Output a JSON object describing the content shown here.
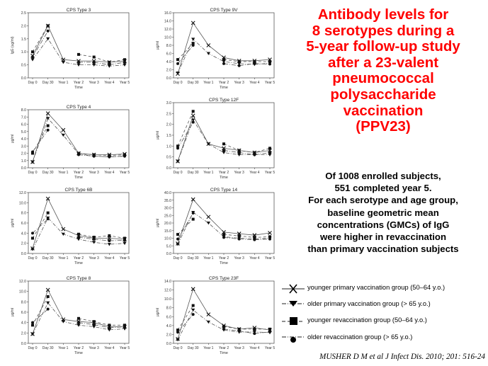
{
  "slide": {
    "title_lines": [
      "Antibody levels for",
      "8 serotypes during a",
      "5-year follow-up study",
      "after a 23-valent",
      "pneumococcal",
      "polysaccharide",
      "vaccination",
      "(PPV23)"
    ],
    "summary_lines": [
      "Of 1008 enrolled subjects,",
      "551 completed year 5.",
      "For each serotype and age group,",
      "baseline geometric mean",
      "concentrations (GMCs) of IgG",
      "were higher in revaccination",
      "than primary vaccination subjects"
    ],
    "legend": [
      {
        "label": "younger primary vaccination group (50–64 y.o.)",
        "marker": "x",
        "line": "solid"
      },
      {
        "label": "older primary vaccination group (> 65 y.o.)",
        "marker": "triangle-down",
        "line": "dash-dot"
      },
      {
        "label": "younger revaccination group (50–64 y.o.)",
        "marker": "square",
        "line": "dash"
      },
      {
        "label": "older revaccination group (> 65 y.o.)",
        "marker": "circle",
        "line": "dash-dot"
      }
    ],
    "citation": "MUSHER D M et al J Infect Dis. 2010; 201: 516-24",
    "colors": {
      "title": "#ff0000",
      "lines": "#555555",
      "axes": "#444444"
    }
  },
  "chart_data": [
    {
      "type": "line",
      "title": "CPS Type 3",
      "ylabel": "IgG (ug/ml)",
      "xlabel": "Time",
      "categories": [
        "Day 0",
        "Day 30",
        "Year 1",
        "Year 2",
        "Year 3",
        "Year 4",
        "Year 5"
      ],
      "ylim": [
        0,
        2.5
      ],
      "yticks": [
        "0.0",
        "0.5",
        "1.0",
        "1.5",
        "2.0",
        "2.5"
      ],
      "series": [
        {
          "values": [
            0.85,
            2.0,
            0.7,
            0.65,
            0.65,
            0.6,
            0.65
          ]
        },
        {
          "values": [
            0.7,
            1.5,
            0.6,
            0.5,
            0.5,
            0.45,
            0.5
          ]
        },
        {
          "values": [
            1.0,
            2.0,
            null,
            0.9,
            0.8,
            0.6,
            0.7
          ]
        },
        {
          "values": [
            0.8,
            1.8,
            null,
            0.6,
            0.6,
            0.5,
            0.6
          ]
        }
      ]
    },
    {
      "type": "line",
      "title": "CPS Type 9V",
      "ylabel": "μg/ml",
      "xlabel": "Time",
      "categories": [
        "Day 0",
        "Day 30",
        "Year 1",
        "Year 2",
        "Year 3",
        "Year 4",
        "Year 5"
      ],
      "ylim": [
        0,
        16
      ],
      "yticks": [
        "0.0",
        "2.0",
        "4.0",
        "6.0",
        "8.0",
        "10.0",
        "12.0",
        "14.0",
        "16.0"
      ],
      "series": [
        {
          "values": [
            1.0,
            13.5,
            8.0,
            5.0,
            4.2,
            4.2,
            4.5
          ]
        },
        {
          "values": [
            1.2,
            9.5,
            6.0,
            4.0,
            3.5,
            3.3,
            3.6
          ]
        },
        {
          "values": [
            4.5,
            8.5,
            null,
            4.5,
            4.0,
            4.0,
            4.0
          ]
        },
        {
          "values": [
            3.5,
            8.0,
            null,
            3.5,
            3.0,
            3.5,
            3.4
          ]
        }
      ]
    },
    {
      "type": "line",
      "title": "CPS Type 4",
      "ylabel": "μg/ml",
      "xlabel": "Time",
      "categories": [
        "Day 0",
        "Day 30",
        "Year 1",
        "Year 2",
        "Year 3",
        "Year 4",
        "Year 5"
      ],
      "ylim": [
        0,
        8
      ],
      "yticks": [
        "0.0",
        "1.0",
        "2.0",
        "3.0",
        "4.0",
        "5.0",
        "6.0",
        "7.0",
        "8.0"
      ],
      "series": [
        {
          "values": [
            0.8,
            7.5,
            5.2,
            2.0,
            1.8,
            1.8,
            1.9
          ]
        },
        {
          "values": [
            0.8,
            6.8,
            4.5,
            1.9,
            1.6,
            1.5,
            1.6
          ]
        },
        {
          "values": [
            2.0,
            5.8,
            null,
            2.0,
            1.8,
            1.7,
            1.8
          ]
        },
        {
          "values": [
            2.2,
            5.2,
            null,
            1.8,
            1.6,
            1.5,
            1.6
          ]
        }
      ]
    },
    {
      "type": "line",
      "title": "CPS Type 12F",
      "ylabel": "μg/ml",
      "xlabel": "Time",
      "categories": [
        "Day 0",
        "Day 30",
        "Year 1",
        "Year 2",
        "Year 3",
        "Year 4",
        "Year 5"
      ],
      "ylim": [
        0,
        3
      ],
      "yticks": [
        "0.0",
        "0.5",
        "1.0",
        "1.5",
        "2.0",
        "2.5",
        "3.0"
      ],
      "series": [
        {
          "values": [
            0.3,
            2.4,
            1.1,
            0.9,
            0.8,
            0.7,
            0.8
          ]
        },
        {
          "values": [
            0.3,
            2.2,
            1.1,
            0.7,
            0.6,
            0.6,
            0.6
          ]
        },
        {
          "values": [
            1.0,
            2.6,
            null,
            1.1,
            0.8,
            0.7,
            0.9
          ]
        },
        {
          "values": [
            0.9,
            2.1,
            null,
            0.8,
            0.7,
            0.6,
            0.7
          ]
        }
      ]
    },
    {
      "type": "line",
      "title": "CPS Type 6B",
      "ylabel": "μg/ml",
      "xlabel": "Time",
      "categories": [
        "Day 0",
        "Day 30",
        "Year 1",
        "Year 2",
        "Year 3",
        "Year 4",
        "Year 5"
      ],
      "ylim": [
        0,
        12
      ],
      "yticks": [
        "0.0",
        "2.0",
        "4.0",
        "6.0",
        "8.0",
        "10.0",
        "12.0"
      ],
      "series": [
        {
          "values": [
            1.0,
            10.8,
            4.8,
            3.5,
            3.0,
            3.0,
            2.8
          ]
        },
        {
          "values": [
            0.8,
            7.0,
            3.8,
            2.8,
            2.2,
            1.8,
            2.0
          ]
        },
        {
          "values": [
            3.0,
            8.0,
            null,
            3.8,
            3.2,
            3.5,
            3.0
          ]
        },
        {
          "values": [
            4.0,
            6.8,
            null,
            3.2,
            2.8,
            2.5,
            2.6
          ]
        }
      ]
    },
    {
      "type": "line",
      "title": "CPS Type 14",
      "ylabel": "μg/ml",
      "xlabel": "Time",
      "categories": [
        "Day 0",
        "Day 30",
        "Year 1",
        "Year 2",
        "Year 3",
        "Year 4",
        "Year 5"
      ],
      "ylim": [
        0,
        40
      ],
      "yticks": [
        "0.0",
        "5.0",
        "10.0",
        "15.0",
        "20.0",
        "25.0",
        "30.0",
        "35.0",
        "40.0"
      ],
      "series": [
        {
          "values": [
            6.5,
            35.5,
            24.0,
            14.0,
            13.0,
            12.0,
            13.5
          ]
        },
        {
          "values": [
            6.0,
            27.0,
            20.0,
            11.0,
            10.0,
            9.5,
            10.0
          ]
        },
        {
          "values": [
            12.5,
            22.5,
            null,
            12.5,
            11.5,
            10.5,
            11.0
          ]
        },
        {
          "values": [
            9.5,
            26.5,
            null,
            10.5,
            9.5,
            9.0,
            9.5
          ]
        }
      ]
    },
    {
      "type": "line",
      "title": "CPS Type 8",
      "ylabel": "μg/ml",
      "xlabel": "Time",
      "categories": [
        "Day 0",
        "Day 30",
        "Year 1",
        "Year 2",
        "Year 3",
        "Year 4",
        "Year 5"
      ],
      "ylim": [
        0,
        12
      ],
      "yticks": [
        "0.0",
        "2.0",
        "4.0",
        "6.0",
        "8.0",
        "10.0",
        "12.0"
      ],
      "series": [
        {
          "values": [
            1.8,
            10.3,
            4.6,
            4.2,
            4.0,
            3.2,
            3.2
          ]
        },
        {
          "values": [
            1.8,
            7.8,
            4.2,
            3.5,
            3.2,
            2.6,
            2.8
          ]
        },
        {
          "values": [
            3.5,
            9.0,
            null,
            4.8,
            4.2,
            3.5,
            3.5
          ]
        },
        {
          "values": [
            4.0,
            6.6,
            null,
            4.0,
            3.6,
            3.0,
            3.2
          ]
        }
      ]
    },
    {
      "type": "line",
      "title": "CPS Type 23F",
      "ylabel": "μg/ml",
      "xlabel": "Time",
      "categories": [
        "Day 0",
        "Day 30",
        "Year 1",
        "Year 2",
        "Year 3",
        "Year 4",
        "Year 5"
      ],
      "ylim": [
        0,
        14
      ],
      "yticks": [
        "0.0",
        "2.0",
        "4.0",
        "6.0",
        "8.0",
        "10.0",
        "12.0",
        "14.0"
      ],
      "series": [
        {
          "values": [
            1.0,
            12.2,
            6.5,
            4.0,
            3.2,
            3.5,
            3.0
          ]
        },
        {
          "values": [
            0.8,
            7.5,
            4.8,
            3.0,
            2.5,
            2.6,
            2.4
          ]
        },
        {
          "values": [
            3.0,
            8.5,
            null,
            3.8,
            3.2,
            3.2,
            3.2
          ]
        },
        {
          "values": [
            2.5,
            6.5,
            null,
            3.2,
            2.8,
            2.2,
            2.6
          ]
        }
      ]
    }
  ]
}
